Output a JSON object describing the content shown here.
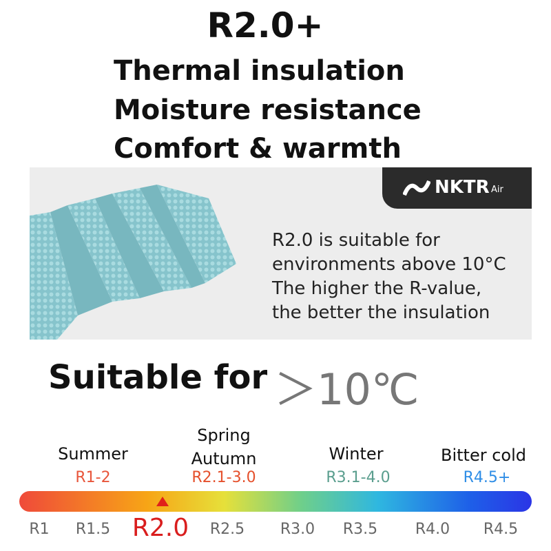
{
  "header": {
    "title": "R2.0+",
    "features": [
      "Thermal insulation",
      "Moisture resistance",
      "Comfort & warmth"
    ]
  },
  "banner": {
    "brand": "NKTR",
    "brand_suffix": "Air",
    "description": [
      "R2.0 is suitable for",
      "environments above 10°C",
      "The higher the R-value,",
      "the better the insulation"
    ]
  },
  "suitable": {
    "label": "Suitable for",
    "value": "＞10℃"
  },
  "scale": {
    "seasons": [
      {
        "name": "Summer",
        "range": "R1-2"
      },
      {
        "name": "Spring Autumn",
        "range": "R2.1-3.0"
      },
      {
        "name": "Winter",
        "range": "R3.1-4.0"
      },
      {
        "name": "Bitter cold",
        "range": "R4.5+"
      }
    ],
    "ticks": [
      "R1",
      "R1.5",
      "R2.0",
      "R2.5",
      "R3.0",
      "R3.5",
      "R4.0",
      "R4.5"
    ]
  }
}
